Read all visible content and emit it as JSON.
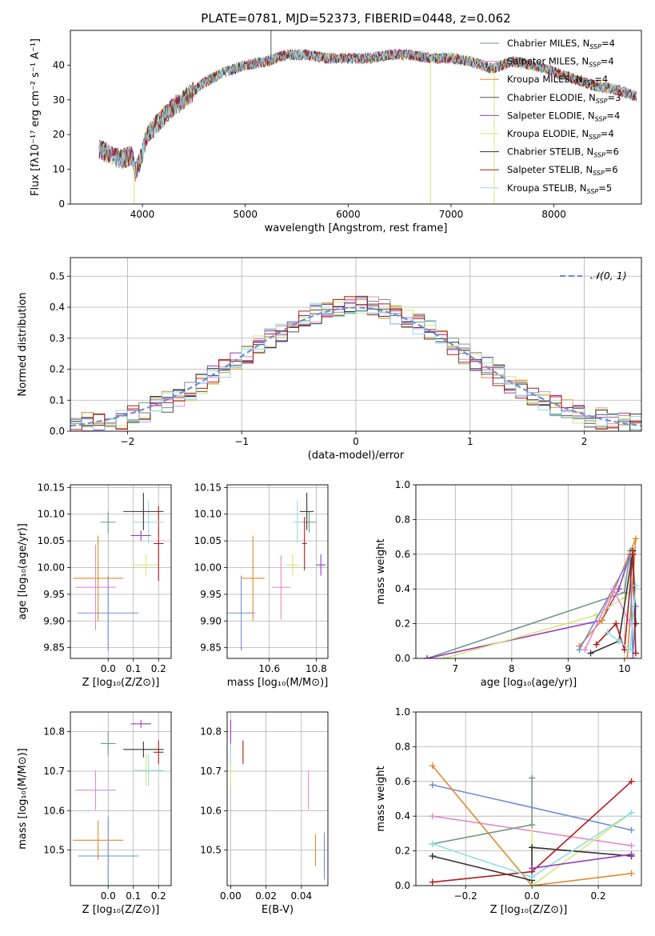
{
  "figure": {
    "title": "PLATE=0781, MJD=52373, FIBERID=0448, z=0.062"
  },
  "colors": {
    "chabrier_miles": "#6f9a86",
    "salpeter_miles": "#e58ac8",
    "kroupa_miles": "#e08a2e",
    "chabrier_elodie": "#555555",
    "salpeter_elodie": "#9a3bc0",
    "kroupa_elodie": "#d7e67a",
    "chabrier_stelib": "#333333",
    "salpeter_stelib": "#b01c1c",
    "kroupa_stelib": "#8fdde8",
    "normal_curve": "#6f8fd6",
    "grid": "#b0b0b0"
  },
  "legend": {
    "entries": [
      {
        "label": "Chabrier MILES, N",
        "sub": "SSP",
        "suffix": "=4",
        "color_key": "chabrier_miles"
      },
      {
        "label": "Salpeter MILES, N",
        "sub": "SSP",
        "suffix": "=4",
        "color_key": "salpeter_miles"
      },
      {
        "label": "Kroupa MILES, N",
        "sub": "SSP",
        "suffix": "=4",
        "color_key": "kroupa_miles"
      },
      {
        "label": "Chabrier ELODIE, N",
        "sub": "SSP",
        "suffix": "=3",
        "color_key": "chabrier_elodie"
      },
      {
        "label": "Salpeter ELODIE, N",
        "sub": "SSP",
        "suffix": "=4",
        "color_key": "salpeter_elodie"
      },
      {
        "label": "Kroupa ELODIE, N",
        "sub": "SSP",
        "suffix": "=4",
        "color_key": "kroupa_elodie"
      },
      {
        "label": "Chabrier STELIB, N",
        "sub": "SSP",
        "suffix": "=6",
        "color_key": "chabrier_stelib"
      },
      {
        "label": "Salpeter STELIB, N",
        "sub": "SSP",
        "suffix": "=6",
        "color_key": "salpeter_stelib"
      },
      {
        "label": "Kroupa STELIB, N",
        "sub": "SSP",
        "suffix": "=5",
        "color_key": "kroupa_stelib"
      }
    ],
    "normal_label": "𝒩(0, 1)"
  },
  "chart_data": [
    {
      "id": "spectrum",
      "type": "line",
      "xlabel": "wavelength [Angstrom, rest frame]",
      "ylabel": "Flux [fλ10⁻¹⁷ erg cm⁻² s⁻¹ A⁻¹]",
      "xlim": [
        3300,
        8850
      ],
      "ylim": [
        0,
        50
      ],
      "xticks": [
        4000,
        5000,
        6000,
        7000,
        8000
      ],
      "yticks": [
        0,
        10,
        20,
        30,
        40
      ],
      "grid": false,
      "legend_placement": "top-right",
      "continuum": {
        "x": [
          3580,
          3700,
          3800,
          3900,
          3930,
          3970,
          4050,
          4200,
          4300,
          4400,
          4600,
          4800,
          5000,
          5200,
          5400,
          5600,
          5800,
          6000,
          6200,
          6400,
          6600,
          6800,
          7000,
          7200,
          7400,
          7600,
          7800,
          8000,
          8200,
          8400,
          8600,
          8800
        ],
        "y": [
          16,
          14,
          13,
          14,
          9,
          12,
          20,
          25,
          28,
          30,
          35,
          38,
          40,
          41,
          43,
          43,
          42,
          42,
          42,
          43,
          43,
          42,
          42,
          41,
          39,
          41,
          40,
          38,
          36,
          34,
          33,
          31
        ]
      },
      "spikes": [
        {
          "x": 5250,
          "y": 50
        },
        {
          "x": 3920,
          "y": 0
        },
        {
          "x": 6800,
          "y": 0
        },
        {
          "x": 7420,
          "y": 0
        }
      ]
    },
    {
      "id": "residuals",
      "type": "line",
      "xlabel": "(data-model)/error",
      "ylabel": "Normed distribution",
      "xlim": [
        -2.5,
        2.5
      ],
      "ylim": [
        0,
        0.56
      ],
      "xticks": [
        -2,
        -1,
        0,
        1,
        2
      ],
      "yticks": [
        0.0,
        0.1,
        0.2,
        0.3,
        0.4,
        0.5
      ],
      "grid": true,
      "legend_placement": "top-right",
      "histogram_bin_width": 0.1,
      "histogram_envelope": {
        "x": [
          -2.5,
          -2.0,
          -1.5,
          -1.0,
          -0.5,
          0.0,
          0.5,
          1.0,
          1.5,
          2.0,
          2.5
        ],
        "y": [
          0.02,
          0.04,
          0.12,
          0.24,
          0.36,
          0.42,
          0.36,
          0.24,
          0.12,
          0.05,
          0.02
        ]
      }
    },
    {
      "id": "age_vs_Z",
      "type": "scatter",
      "xlabel": "Z [log₁₀(Z/Z⊙)]",
      "ylabel": "age  [log₁₀(age/yr)]",
      "xlim": [
        -0.15,
        0.25
      ],
      "ylim": [
        9.83,
        10.155
      ],
      "xticks": [
        0.0,
        0.1,
        0.2
      ],
      "yticks": [
        9.85,
        9.9,
        9.95,
        10.0,
        10.05,
        10.1,
        10.15
      ],
      "grid": true,
      "points": [
        {
          "x": 0.0,
          "y": 9.915,
          "xerr": 0.12,
          "yerr": 0.07,
          "color_key": "normal_curve"
        },
        {
          "x": -0.04,
          "y": 9.98,
          "xerr": 0.1,
          "yerr": 0.08,
          "color_key": "kroupa_miles"
        },
        {
          "x": -0.05,
          "y": 9.963,
          "xerr": 0.08,
          "yerr": 0.08,
          "color_key": "salpeter_miles"
        },
        {
          "x": 0.15,
          "y": 10.005,
          "xerr": 0.05,
          "yerr": 0.02,
          "color_key": "kroupa_elodie"
        },
        {
          "x": 0.2,
          "y": 10.045,
          "xerr": 0.02,
          "yerr": 0.07,
          "color_key": "salpeter_stelib"
        },
        {
          "x": 0.0,
          "y": 10.085,
          "xerr": 0.03,
          "yerr": 0.02,
          "color_key": "chabrier_miles"
        },
        {
          "x": 0.16,
          "y": 10.085,
          "xerr": 0.06,
          "yerr": 0.04,
          "color_key": "kroupa_stelib"
        },
        {
          "x": 0.14,
          "y": 10.105,
          "xerr": 0.08,
          "yerr": 0.035,
          "color_key": "chabrier_stelib"
        },
        {
          "x": 0.13,
          "y": 10.06,
          "xerr": 0.04,
          "yerr": 0.01,
          "color_key": "salpeter_elodie"
        }
      ]
    },
    {
      "id": "age_vs_mass",
      "type": "scatter",
      "xlabel": "mass [log₁₀(M/M⊙)]",
      "ylabel": "",
      "xlim": [
        10.42,
        10.85
      ],
      "ylim": [
        9.83,
        10.155
      ],
      "xticks": [
        10.6,
        10.8
      ],
      "yticks": [
        9.85,
        9.9,
        9.95,
        10.0,
        10.05,
        10.1,
        10.15
      ],
      "grid": true,
      "points": [
        {
          "x": 10.48,
          "y": 9.915,
          "xerr": 0.06,
          "yerr": 0.07,
          "color_key": "normal_curve"
        },
        {
          "x": 10.53,
          "y": 9.98,
          "xerr": 0.05,
          "yerr": 0.08,
          "color_key": "kroupa_miles"
        },
        {
          "x": 10.65,
          "y": 9.963,
          "xerr": 0.04,
          "yerr": 0.06,
          "color_key": "salpeter_miles"
        },
        {
          "x": 10.7,
          "y": 10.005,
          "xerr": 0.03,
          "yerr": 0.02,
          "color_key": "kroupa_elodie"
        },
        {
          "x": 10.75,
          "y": 10.045,
          "xerr": 0.01,
          "yerr": 0.05,
          "color_key": "salpeter_stelib"
        },
        {
          "x": 10.77,
          "y": 10.085,
          "xerr": 0.03,
          "yerr": 0.02,
          "color_key": "chabrier_miles"
        },
        {
          "x": 10.72,
          "y": 10.085,
          "xerr": 0.02,
          "yerr": 0.04,
          "color_key": "kroupa_stelib"
        },
        {
          "x": 10.76,
          "y": 10.105,
          "xerr": 0.03,
          "yerr": 0.035,
          "color_key": "chabrier_stelib"
        },
        {
          "x": 10.82,
          "y": 10.005,
          "xerr": 0.02,
          "yerr": 0.02,
          "color_key": "salpeter_elodie"
        }
      ]
    },
    {
      "id": "mass_weight_vs_age",
      "type": "line",
      "xlabel": "age  [log₁₀(age/yr)]",
      "ylabel": "mass weight",
      "xlim": [
        6.3,
        10.3
      ],
      "ylim": [
        0,
        1
      ],
      "xticks": [
        7,
        8,
        9,
        10
      ],
      "yticks": [
        0.0,
        0.2,
        0.4,
        0.6,
        0.8,
        1.0
      ],
      "grid": true,
      "series": [
        {
          "color_key": "chabrier_miles",
          "x": [
            6.5,
            10.0,
            10.1,
            10.15
          ],
          "y": [
            0.0,
            0.38,
            0.62,
            0.0
          ]
        },
        {
          "color_key": "salpeter_elodie",
          "x": [
            6.5,
            9.6,
            9.9,
            10.1
          ],
          "y": [
            0.0,
            0.22,
            0.4,
            0.6
          ]
        },
        {
          "color_key": "kroupa_elodie",
          "x": [
            6.8,
            9.5,
            10.0,
            10.15
          ],
          "y": [
            0.0,
            0.25,
            0.35,
            0.4
          ]
        },
        {
          "color_key": "kroupa_miles",
          "x": [
            9.2,
            9.6,
            10.2,
            10.05
          ],
          "y": [
            0.07,
            0.22,
            0.69,
            0.0
          ]
        },
        {
          "color_key": "normal_curve",
          "x": [
            9.2,
            10.1,
            10.15,
            10.2
          ],
          "y": [
            0.05,
            0.58,
            0.0,
            0.3
          ]
        },
        {
          "color_key": "salpeter_miles",
          "x": [
            9.3,
            9.8,
            10.1,
            10.2
          ],
          "y": [
            0.05,
            0.4,
            0.2,
            0.2
          ]
        },
        {
          "color_key": "chabrier_stelib",
          "x": [
            9.4,
            9.9,
            10.15,
            10.2
          ],
          "y": [
            0.03,
            0.1,
            0.62,
            0.2
          ]
        },
        {
          "color_key": "salpeter_stelib",
          "x": [
            9.5,
            9.85,
            10.0,
            10.15,
            10.2
          ],
          "y": [
            0.08,
            0.2,
            0.05,
            0.6,
            0.03
          ]
        },
        {
          "color_key": "kroupa_stelib",
          "x": [
            9.7,
            9.9,
            10.1,
            10.2
          ],
          "y": [
            0.15,
            0.1,
            0.05,
            0.42
          ]
        }
      ]
    },
    {
      "id": "mass_vs_Z",
      "type": "scatter",
      "xlabel": "Z [log₁₀(Z/Z⊙)]",
      "ylabel": "mass [log₁₀(M/M⊙)]",
      "xlim": [
        -0.15,
        0.25
      ],
      "ylim": [
        10.41,
        10.85
      ],
      "xticks": [
        0.0,
        0.1,
        0.2
      ],
      "yticks": [
        10.5,
        10.6,
        10.7,
        10.8
      ],
      "grid": true,
      "points": [
        {
          "x": 0.0,
          "y": 10.485,
          "xerr": 0.12,
          "yerr": 0.1,
          "color_key": "normal_curve"
        },
        {
          "x": -0.04,
          "y": 10.525,
          "xerr": 0.1,
          "yerr": 0.05,
          "color_key": "kroupa_miles"
        },
        {
          "x": -0.05,
          "y": 10.652,
          "xerr": 0.08,
          "yerr": 0.05,
          "color_key": "salpeter_miles"
        },
        {
          "x": 0.15,
          "y": 10.702,
          "xerr": 0.05,
          "yerr": 0.04,
          "color_key": "kroupa_elodie"
        },
        {
          "x": 0.2,
          "y": 10.748,
          "xerr": 0.02,
          "yerr": 0.03,
          "color_key": "salpeter_stelib"
        },
        {
          "x": 0.0,
          "y": 10.77,
          "xerr": 0.03,
          "yerr": 0.03,
          "color_key": "chabrier_miles"
        },
        {
          "x": 0.16,
          "y": 10.702,
          "xerr": 0.06,
          "yerr": 0.04,
          "color_key": "kroupa_stelib"
        },
        {
          "x": 0.14,
          "y": 10.755,
          "xerr": 0.08,
          "yerr": 0.02,
          "color_key": "chabrier_stelib"
        },
        {
          "x": 0.13,
          "y": 10.82,
          "xerr": 0.04,
          "yerr": 0.01,
          "color_key": "salpeter_elodie"
        }
      ]
    },
    {
      "id": "mass_vs_ebv",
      "type": "scatter",
      "xlabel": "E(B-V)",
      "ylabel": "",
      "xlim": [
        -0.002,
        0.055
      ],
      "ylim": [
        10.41,
        10.85
      ],
      "xticks": [
        0.0,
        0.02,
        0.04
      ],
      "yticks": [
        10.5,
        10.6,
        10.7,
        10.8
      ],
      "grid": true,
      "points": [
        {
          "x": 0.053,
          "y": 10.485,
          "xerr": 0,
          "yerr": 0.06,
          "color_key": "normal_curve"
        },
        {
          "x": 0.048,
          "y": 10.5,
          "xerr": 0,
          "yerr": 0.04,
          "color_key": "kroupa_miles"
        },
        {
          "x": 0.044,
          "y": 10.652,
          "xerr": 0,
          "yerr": 0.05,
          "color_key": "salpeter_miles"
        },
        {
          "x": 0.0,
          "y": 10.702,
          "xerr": 0,
          "yerr": 0.04,
          "color_key": "kroupa_elodie"
        },
        {
          "x": 0.007,
          "y": 10.748,
          "xerr": 0,
          "yerr": 0.03,
          "color_key": "salpeter_stelib"
        },
        {
          "x": 0.0,
          "y": 10.75,
          "xerr": 0,
          "yerr": 0.03,
          "color_key": "kroupa_stelib"
        },
        {
          "x": 0.0,
          "y": 10.8,
          "xerr": 0,
          "yerr": 0.03,
          "color_key": "salpeter_elodie"
        }
      ]
    },
    {
      "id": "mass_weight_vs_Z",
      "type": "line",
      "xlabel": "Z [log₁₀(Z/Z⊙)]",
      "ylabel": "mass weight",
      "xlim": [
        -0.35,
        0.33
      ],
      "ylim": [
        0,
        1
      ],
      "xticks": [
        -0.2,
        0.0,
        0.2
      ],
      "yticks": [
        0.0,
        0.2,
        0.4,
        0.6,
        0.8,
        1.0
      ],
      "grid": true,
      "series": [
        {
          "color_key": "normal_curve",
          "x": [
            -0.3,
            0.3
          ],
          "y": [
            0.58,
            0.32
          ]
        },
        {
          "color_key": "salpeter_miles",
          "x": [
            -0.3,
            0.3
          ],
          "y": [
            0.4,
            0.23
          ]
        },
        {
          "color_key": "kroupa_miles",
          "x": [
            -0.3,
            0.0,
            0.3
          ],
          "y": [
            0.69,
            0.0,
            0.07
          ]
        },
        {
          "color_key": "kroupa_elodie",
          "x": [
            -0.3,
            0.0,
            0.0,
            0.3
          ],
          "y": [
            0.24,
            0.35,
            0.0,
            0.42
          ]
        },
        {
          "color_key": "chabrier_miles",
          "x": [
            -0.3,
            0.0,
            0.0
          ],
          "y": [
            0.24,
            0.35,
            0.62
          ]
        },
        {
          "color_key": "chabrier_stelib",
          "x": [
            -0.3,
            0.0,
            0.0,
            0.3
          ],
          "y": [
            0.17,
            0.03,
            0.22,
            0.17
          ]
        },
        {
          "color_key": "salpeter_stelib",
          "x": [
            -0.3,
            0.0,
            0.3
          ],
          "y": [
            0.02,
            0.08,
            0.6
          ]
        },
        {
          "color_key": "kroupa_stelib",
          "x": [
            -0.3,
            0.0,
            0.3
          ],
          "y": [
            0.24,
            0.05,
            0.42
          ]
        },
        {
          "color_key": "salpeter_elodie",
          "x": [
            0.0,
            0.3
          ],
          "y": [
            0.1,
            0.18
          ]
        }
      ]
    }
  ]
}
